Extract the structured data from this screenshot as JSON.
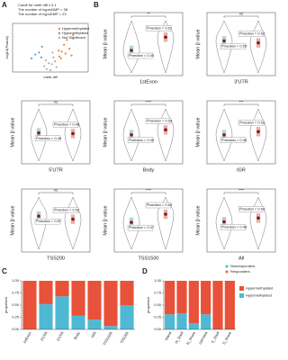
{
  "chart_data": [
    {
      "type": "scatter",
      "label": "A",
      "annotations": [
        "Cutoff for meth diff ≥ 0.1",
        "The number of hyperDMP = 38",
        "The number of hypoDMP = 23"
      ],
      "xlabel": "meth diff",
      "ylabel": "-log10(Pvalue)",
      "xlim": [
        -0.5,
        0.5
      ],
      "ylim": [
        0,
        5
      ],
      "series": [
        {
          "name": "Hypermethylated",
          "color": "#f0833a",
          "x": [
            0.12,
            0.15,
            0.18,
            0.2,
            0.22,
            0.25,
            0.3,
            0.14,
            0.11,
            0.28
          ],
          "values": [
            1.6,
            2.1,
            2.8,
            1.9,
            3.3,
            2.4,
            3.8,
            1.4,
            2.2,
            1.7
          ]
        },
        {
          "name": "Hypomethylated",
          "color": "#4da3d9",
          "x": [
            -0.12,
            -0.15,
            -0.2,
            -0.11,
            -0.25
          ],
          "values": [
            1.5,
            2.0,
            1.8,
            2.6,
            1.4
          ]
        },
        {
          "name": "Not Significant",
          "color": "#b0b0b0",
          "x": [
            -0.05,
            0.02,
            0.06,
            -0.08,
            0.0,
            0.04,
            -0.02,
            0.08,
            -0.06,
            0.03
          ],
          "values": [
            0.3,
            0.8,
            1.1,
            0.6,
            0.2,
            1.5,
            0.9,
            0.5,
            1.2,
            2.0
          ]
        }
      ]
    },
    {
      "type": "violin",
      "label": "B",
      "ylabel": "Mean β value",
      "series": [
        {
          "name": "Nonresponders",
          "color": "#4fb9d3"
        },
        {
          "name": "Responders",
          "color": "#e8634a"
        }
      ],
      "panels": [
        {
          "category": "1stExon",
          "significance": "**",
          "ylim": [
            0,
            1
          ],
          "values": [
            0.4,
            0.61
          ],
          "value_labels": [
            "P̂median = 0.40",
            "P̂median = 0.61"
          ]
        },
        {
          "category": "3'UTR",
          "significance": "ns",
          "ylim": [
            0,
            1
          ],
          "values": [
            0.55,
            0.52
          ],
          "value_labels": [
            "P̂median = 0.55",
            "P̂median = 0.52"
          ]
        },
        {
          "category": "5'UTR",
          "significance": "ns",
          "ylim": [
            0,
            1
          ],
          "values": [
            0.49,
            0.48
          ],
          "value_labels": [
            "P̂median = 0.49",
            "P̂median = 0.48"
          ]
        },
        {
          "category": "Body",
          "significance": "****",
          "ylim": [
            0,
            1
          ],
          "values": [
            0.46,
            0.54
          ],
          "value_labels": [
            "P̂median = 0.46",
            "P̂median = 0.54"
          ]
        },
        {
          "category": "IGR",
          "significance": "***",
          "ylim": [
            0,
            1
          ],
          "values": [
            0.46,
            0.51
          ],
          "value_labels": [
            "P̂median = 0.46",
            "P̂median = 0.51"
          ]
        },
        {
          "category": "TSS200",
          "significance": "ns",
          "ylim": [
            0,
            1
          ],
          "values": [
            0.57,
            0.52
          ],
          "value_labels": [
            "P̂median = 0.57",
            "P̂median = 0.52"
          ]
        },
        {
          "category": "TSS1500",
          "significance": "****",
          "ylim": [
            0,
            1
          ],
          "values": [
            0.47,
            0.6
          ],
          "value_labels": [
            "P̂median = 0.47",
            "P̂median = 0.60"
          ]
        },
        {
          "category": "All",
          "significance": "****",
          "ylim": [
            0,
            1
          ],
          "values": [
            0.48,
            0.54
          ],
          "value_labels": [
            "P̂median = 0.48",
            "P̂median = 0.54"
          ]
        }
      ]
    },
    {
      "type": "stacked_bar",
      "label": "C",
      "ylabel": "proportion",
      "ylim": [
        0,
        1
      ],
      "yticks": [
        {
          "value": 0,
          "label": "0.00"
        },
        {
          "value": 0.25,
          "label": "0.25"
        },
        {
          "value": 0.5,
          "label": "0.50"
        },
        {
          "value": 0.75,
          "label": "0.75"
        },
        {
          "value": 1,
          "label": "1.00"
        }
      ],
      "categories": [
        "1stExon",
        "3'UTR",
        "5'UTR",
        "Body",
        "IGR",
        "TSS1500",
        "TSS200"
      ],
      "series": [
        {
          "color": "#e8523a",
          "values": [
            1,
            0.48,
            0.32,
            0.72,
            0.8,
            0.93,
            0.5
          ]
        },
        {
          "color": "#4fb9d3",
          "values": [
            0,
            0.52,
            0.68,
            0.28,
            0.2,
            0.07,
            0.5
          ]
        }
      ]
    },
    {
      "type": "stacked_bar",
      "label": "D",
      "ylabel": "proportion",
      "ylim": [
        0,
        1
      ],
      "yticks": [
        {
          "value": 0,
          "label": "0.00"
        },
        {
          "value": 0.25,
          "label": "0.25"
        },
        {
          "value": 0.5,
          "label": "0.50"
        },
        {
          "value": 0.75,
          "label": "0.75"
        },
        {
          "value": 1,
          "label": "1.00"
        }
      ],
      "categories": [
        "Island",
        "N_Shelf",
        "N_Shore",
        "opensea",
        "S_Shelf",
        "S_Shore"
      ],
      "series": [
        {
          "name": "Hypermethylated",
          "color": "#e8523a",
          "values": [
            0.69,
            0.67,
            0.87,
            0.69,
            1,
            1
          ]
        },
        {
          "name": "Hypomethylated",
          "color": "#4fb9d3",
          "values": [
            0.31,
            0.33,
            0.13,
            0.31,
            0,
            0
          ]
        }
      ]
    }
  ]
}
